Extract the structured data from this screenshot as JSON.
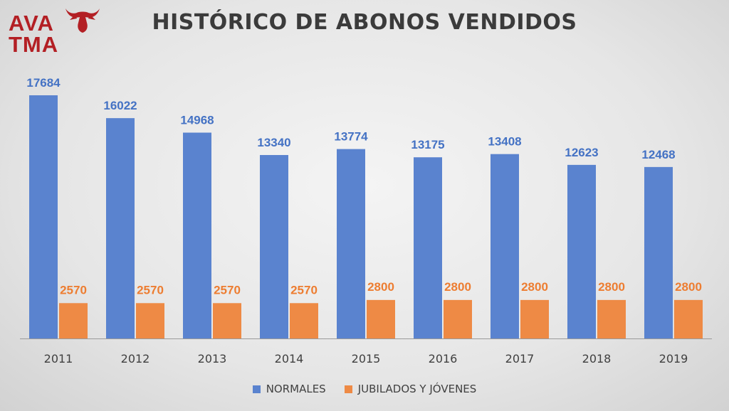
{
  "logo": {
    "line1": "AVA",
    "line2": "TMA",
    "color": "#b31f24",
    "icon": "bull-head-icon"
  },
  "chart_data": {
    "type": "bar",
    "title": "HISTÓRICO DE ABONOS VENDIDOS",
    "categories": [
      "2011",
      "2012",
      "2013",
      "2014",
      "2015",
      "2016",
      "2017",
      "2018",
      "2019"
    ],
    "series": [
      {
        "name": "NORMALES",
        "color": "#5a83cf",
        "label_color": "#4472c4",
        "values": [
          17684,
          16022,
          14968,
          13340,
          13774,
          13175,
          13408,
          12623,
          12468
        ]
      },
      {
        "name": "JUBILADOS Y JÓVENES",
        "color": "#ee8a45",
        "label_color": "#ed7d31",
        "values": [
          2570,
          2570,
          2570,
          2570,
          2800,
          2800,
          2800,
          2800,
          2800
        ]
      }
    ],
    "xlabel": "",
    "ylabel": "",
    "ylim": [
      0,
      18000
    ],
    "grid": false,
    "legend": "bottom",
    "data_labels": true
  }
}
